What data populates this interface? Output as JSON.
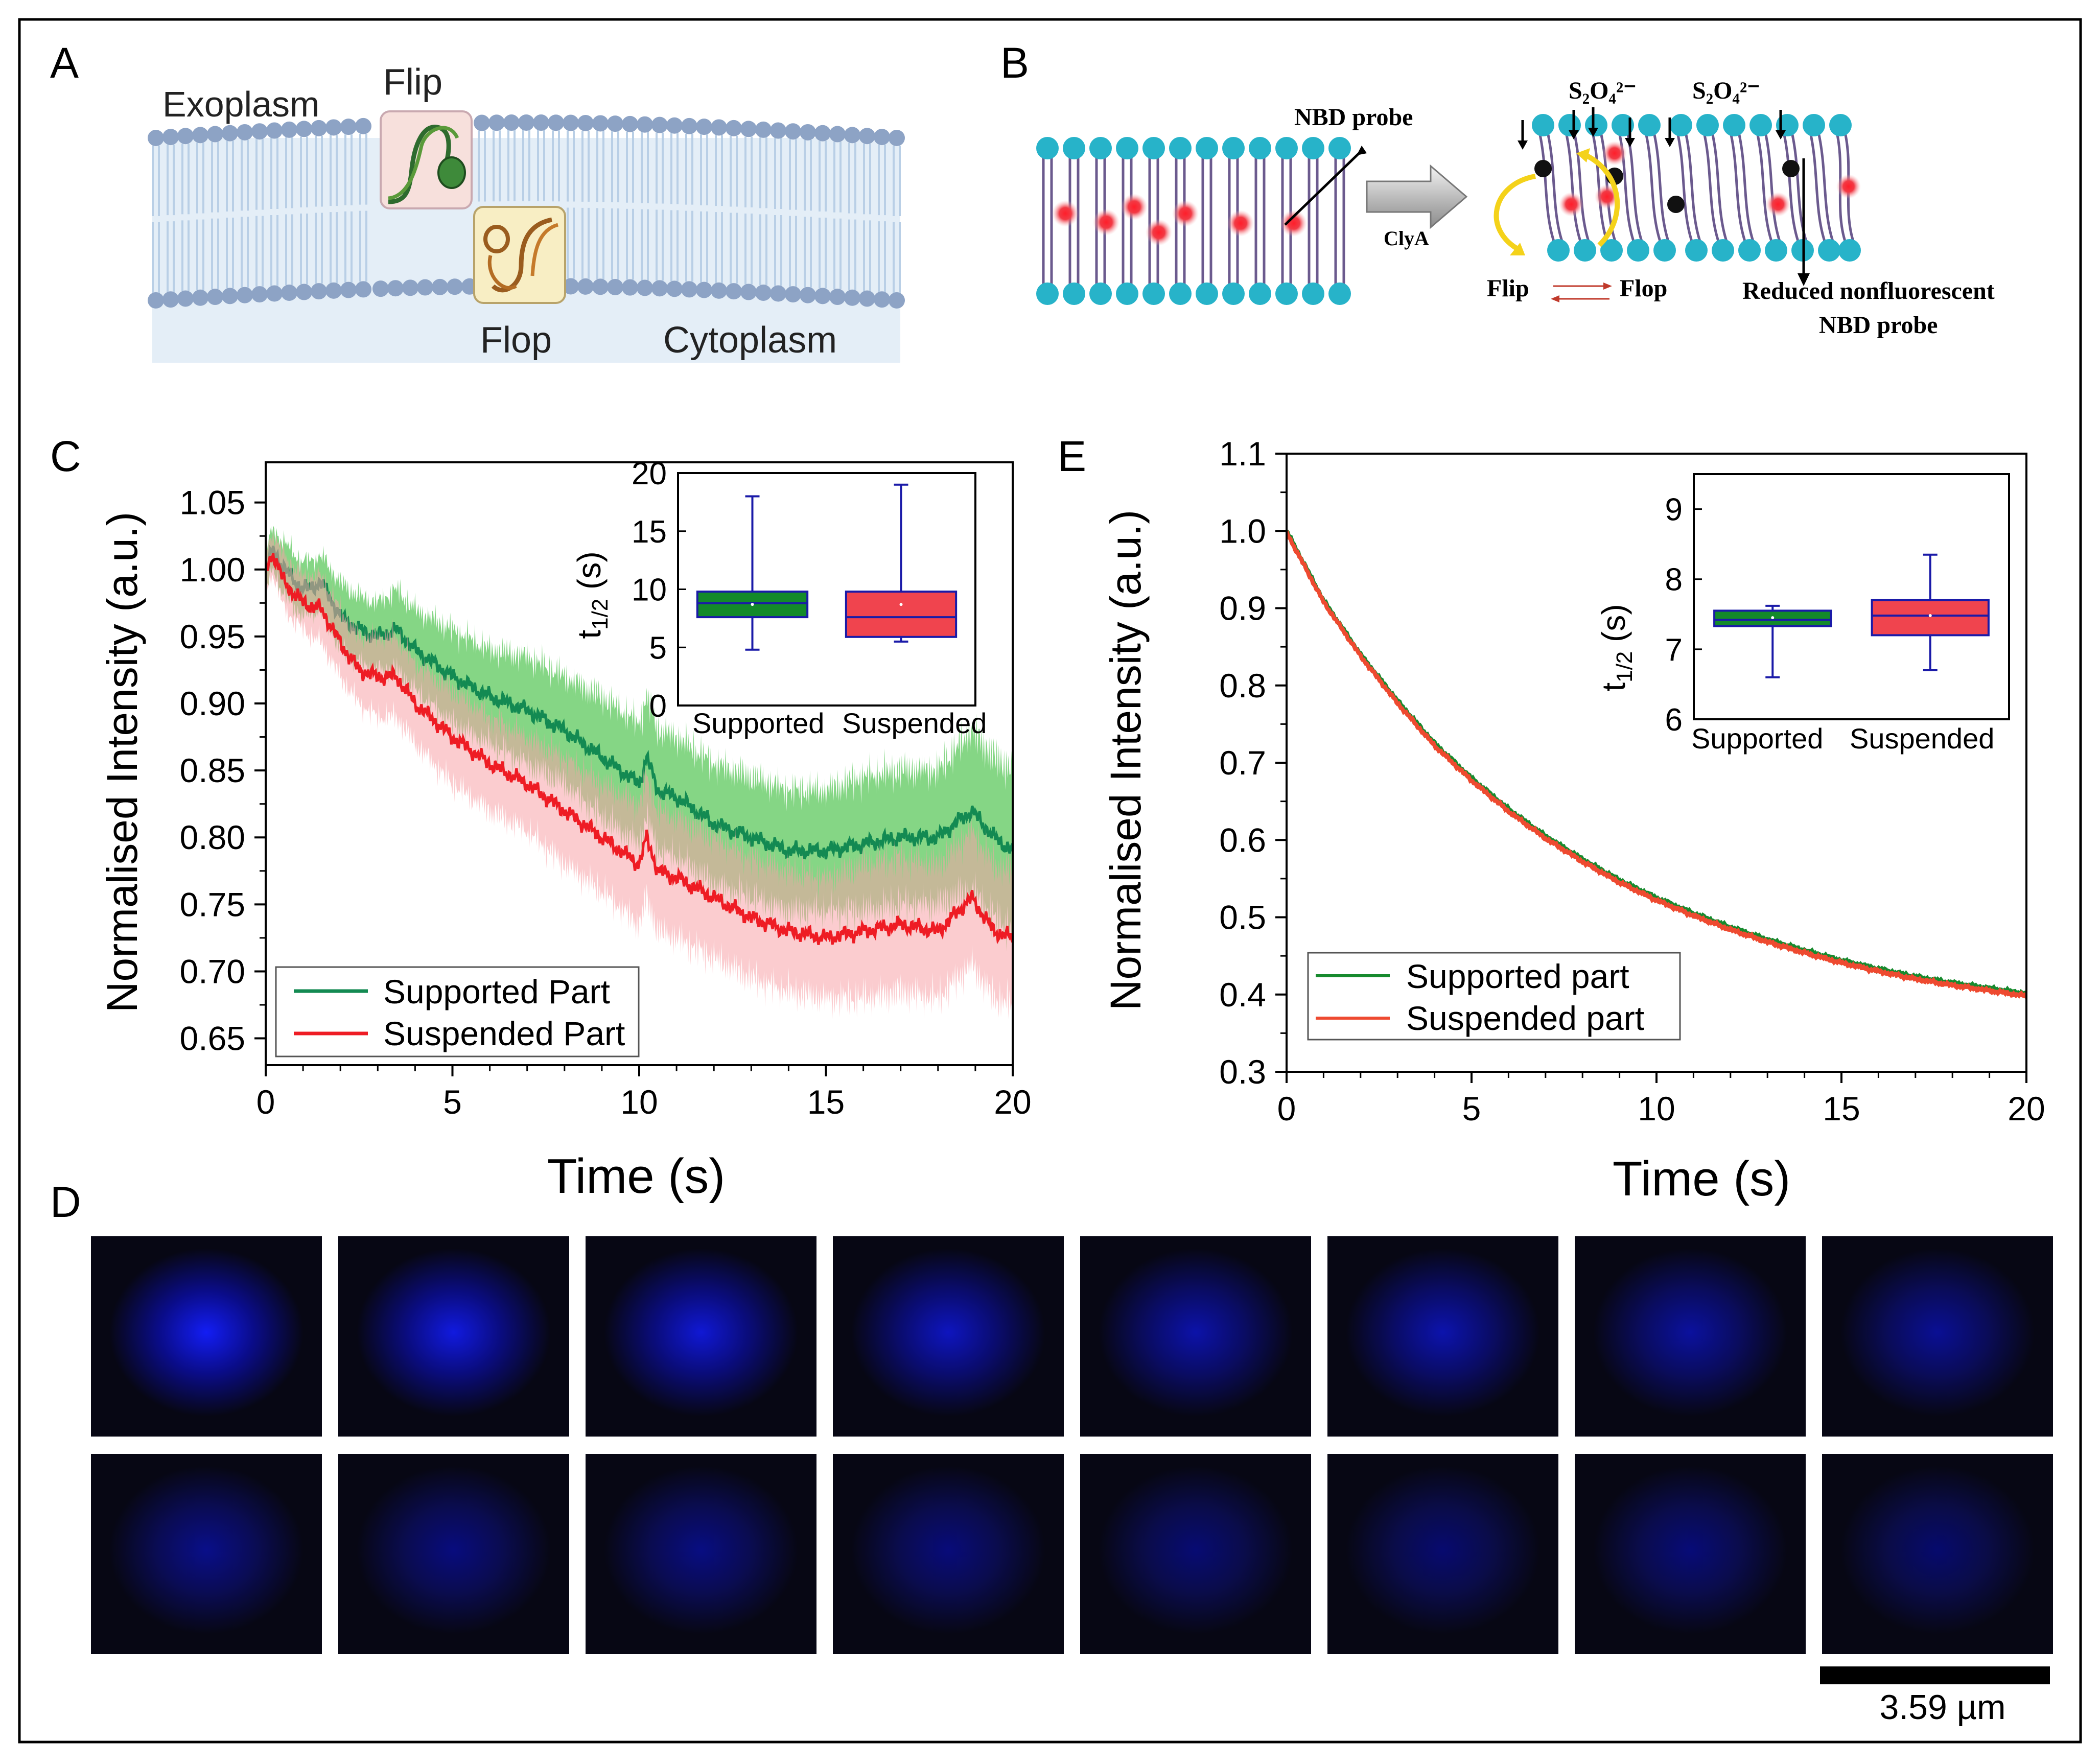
{
  "panels": {
    "A": "A",
    "B": "B",
    "C": "C",
    "D": "D",
    "E": "E"
  },
  "panelA": {
    "exoplasm": "Exoplasm",
    "cytoplasm": "Cytoplasm",
    "flip": "Flip",
    "flop": "Flop",
    "colors": {
      "bilayer_bg": "#e4eef7",
      "head": "#8da3c5",
      "tail": "#b9cfe6"
    }
  },
  "panelB": {
    "nbd_probe": "NBD probe",
    "clya": "ClyA",
    "dithionite_1": "S₂O₄²⁻",
    "dithionite_2": "S₂O₄²⁻",
    "flip": "Flip",
    "flop": "Flop",
    "reduced_1": "Reduced nonfluorescent",
    "reduced_2": "NBD probe",
    "colors": {
      "head": "#27b3c9",
      "tail": "#6b5a8e",
      "probe": "#e8202a"
    }
  },
  "chart_data": [
    {
      "panel": "C",
      "type": "line",
      "xlabel": "Time (s)",
      "ylabel": "Normalised Intensity (a.u.)",
      "xlim": [
        0,
        20
      ],
      "ylim": [
        0.63,
        1.08
      ],
      "xticks": [
        "0",
        "5",
        "10",
        "15",
        "20"
      ],
      "yticks": [
        "0.65",
        "0.70",
        "0.75",
        "0.80",
        "0.85",
        "0.90",
        "0.95",
        "1.00",
        "1.05"
      ],
      "series": [
        {
          "name": "Supported Part",
          "color": "#138a52",
          "band_color": "#5cc85c",
          "x": [
            0,
            0.2,
            0.5,
            1,
            1.5,
            2,
            2.5,
            3,
            3.5,
            4,
            5,
            6,
            7,
            8,
            9,
            10,
            10.2,
            10.5,
            11,
            12,
            13,
            14,
            15,
            16,
            17,
            18,
            18.9,
            19.5,
            20
          ],
          "y": [
            1.0,
            1.015,
            1.0,
            0.985,
            0.99,
            0.965,
            0.955,
            0.95,
            0.955,
            0.94,
            0.92,
            0.905,
            0.895,
            0.88,
            0.86,
            0.84,
            0.86,
            0.835,
            0.83,
            0.81,
            0.8,
            0.79,
            0.79,
            0.795,
            0.8,
            0.8,
            0.82,
            0.8,
            0.79
          ],
          "band": [
            0.015,
            0.015,
            0.02,
            0.02,
            0.02,
            0.025,
            0.025,
            0.025,
            0.03,
            0.03,
            0.035,
            0.035,
            0.04,
            0.04,
            0.045,
            0.045,
            0.045,
            0.045,
            0.045,
            0.045,
            0.045,
            0.045,
            0.045,
            0.05,
            0.05,
            0.05,
            0.06,
            0.06,
            0.06
          ]
        },
        {
          "name": "Suspended Part",
          "color": "#ee1c24",
          "band_color": "#f7a3a8",
          "x": [
            0,
            0.2,
            0.5,
            1,
            1.5,
            2,
            2.5,
            3,
            3.5,
            4,
            5,
            6,
            7,
            8,
            9,
            10,
            10.2,
            10.5,
            11,
            12,
            13,
            14,
            15,
            16,
            17,
            18,
            18.9,
            19.5,
            20
          ],
          "y": [
            1.0,
            1.012,
            0.99,
            0.975,
            0.97,
            0.945,
            0.925,
            0.92,
            0.92,
            0.9,
            0.875,
            0.855,
            0.84,
            0.82,
            0.8,
            0.78,
            0.8,
            0.775,
            0.77,
            0.755,
            0.74,
            0.73,
            0.725,
            0.73,
            0.735,
            0.73,
            0.755,
            0.73,
            0.725
          ],
          "band": [
            0.015,
            0.015,
            0.02,
            0.02,
            0.025,
            0.025,
            0.025,
            0.03,
            0.03,
            0.03,
            0.035,
            0.035,
            0.035,
            0.04,
            0.04,
            0.045,
            0.045,
            0.045,
            0.045,
            0.045,
            0.045,
            0.045,
            0.045,
            0.05,
            0.05,
            0.05,
            0.05,
            0.05,
            0.05
          ]
        }
      ],
      "legend": "bottom-left",
      "inset": {
        "type": "box",
        "ylabel": "t1/2 (s)",
        "ylim": [
          0,
          20
        ],
        "yticks": [
          "0",
          "5",
          "10",
          "15",
          "20"
        ],
        "categories": [
          "Supported",
          "Suspended"
        ],
        "boxes": [
          {
            "name": "Supported",
            "min": 4.8,
            "q1": 7.6,
            "median": 8.8,
            "q3": 9.8,
            "max": 18.0,
            "mean": 8.7,
            "color": "#138a2a"
          },
          {
            "name": "Suspended",
            "min": 5.5,
            "q1": 5.9,
            "median": 7.6,
            "q3": 9.8,
            "max": 19.0,
            "mean": 8.7,
            "color": "#f0444e"
          }
        ]
      }
    },
    {
      "panel": "E",
      "type": "line",
      "xlabel": "Time (s)",
      "ylabel": "Normalised Intensity (a.u.)",
      "xlim": [
        0,
        20
      ],
      "ylim": [
        0.3,
        1.1
      ],
      "xticks": [
        "0",
        "5",
        "10",
        "15",
        "20"
      ],
      "yticks": [
        "0.3",
        "0.4",
        "0.5",
        "0.6",
        "0.7",
        "0.8",
        "0.9",
        "1.0",
        "1.1"
      ],
      "series": [
        {
          "name": "Supported part",
          "color": "#178a2e",
          "x": [
            0,
            1,
            2,
            3,
            4,
            5,
            6,
            7,
            8,
            9,
            10,
            11,
            12,
            13,
            14,
            15,
            16,
            17,
            18,
            19,
            20
          ],
          "y": [
            1.0,
            0.91,
            0.84,
            0.78,
            0.725,
            0.68,
            0.64,
            0.605,
            0.575,
            0.548,
            0.525,
            0.505,
            0.487,
            0.471,
            0.457,
            0.444,
            0.433,
            0.423,
            0.415,
            0.408,
            0.401
          ]
        },
        {
          "name": "Suspended part",
          "color": "#ee4a30",
          "x": [
            0,
            1,
            2,
            3,
            4,
            5,
            6,
            7,
            8,
            9,
            10,
            11,
            12,
            13,
            14,
            15,
            16,
            17,
            18,
            19,
            20
          ],
          "y": [
            0.998,
            0.908,
            0.838,
            0.777,
            0.722,
            0.677,
            0.637,
            0.602,
            0.572,
            0.545,
            0.522,
            0.502,
            0.484,
            0.468,
            0.454,
            0.441,
            0.43,
            0.42,
            0.412,
            0.405,
            0.398
          ]
        }
      ],
      "legend": "bottom-left",
      "inset": {
        "type": "box",
        "ylabel": "t1/2 (s)",
        "ylim": [
          6,
          9.5
        ],
        "yticks": [
          "6",
          "7",
          "8",
          "9"
        ],
        "categories": [
          "Supported",
          "Suspended"
        ],
        "boxes": [
          {
            "name": "Supported",
            "min": 6.6,
            "q1": 7.33,
            "median": 7.42,
            "q3": 7.55,
            "max": 7.62,
            "mean": 7.45,
            "color": "#138a2a"
          },
          {
            "name": "Suspended",
            "min": 6.7,
            "q1": 7.2,
            "median": 7.48,
            "q3": 7.7,
            "max": 8.35,
            "mean": 7.48,
            "color": "#f0444e"
          }
        ]
      }
    }
  ],
  "panelD": {
    "scale_bar_label": "3.59 µm",
    "intensities": [
      0.95,
      0.85,
      0.8,
      0.7,
      0.6,
      0.62,
      0.55,
      0.5,
      0.45,
      0.4,
      0.42,
      0.38,
      0.35,
      0.33,
      0.37,
      0.32
    ]
  }
}
